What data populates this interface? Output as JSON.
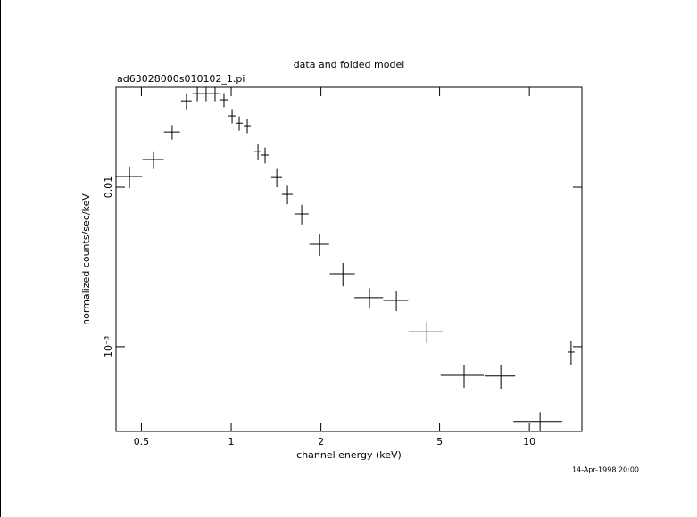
{
  "chart_data": {
    "type": "scatter",
    "title": "data and folded model",
    "subtitle": "ad63028000s010102_1.pi",
    "x_label": "channel energy (keV)",
    "y_label": "normalized counts/sec/keV",
    "footnote": "14-Apr-1998 20:00",
    "xscale": "log",
    "yscale": "log",
    "color": "#000000",
    "xlim": [
      0.411,
      15.0
    ],
    "ylim": [
      0.000294,
      0.0423
    ],
    "xticks": [
      0.5,
      1,
      2,
      5,
      10
    ],
    "yticks": [
      {
        "value": 0.001,
        "label": "10⁻³"
      },
      0.01
    ],
    "x": [
      0.456,
      0.549,
      0.634,
      0.708,
      0.77,
      0.824,
      0.883,
      0.946,
      1.007,
      1.064,
      1.132,
      1.23,
      1.299,
      1.422,
      1.544,
      1.724,
      1.98,
      2.37,
      2.91,
      3.58,
      4.53,
      6.04,
      8.02,
      10.86,
      13.8
    ],
    "xerr": [
      0.047,
      0.045,
      0.039,
      0.029,
      0.027,
      0.028,
      0.03,
      0.033,
      0.028,
      0.029,
      0.031,
      0.034,
      0.036,
      0.059,
      0.064,
      0.095,
      0.15,
      0.229,
      0.321,
      0.345,
      0.593,
      0.998,
      0.939,
      2.02,
      0.38
    ],
    "y": [
      0.01167,
      0.0149,
      0.0222,
      0.0348,
      0.0386,
      0.0386,
      0.0386,
      0.0353,
      0.028,
      0.0252,
      0.0243,
      0.0167,
      0.0159,
      0.0115,
      0.00902,
      0.0068,
      0.00439,
      0.00287,
      0.00203,
      0.00195,
      0.00124,
      0.000662,
      0.000655,
      0.00034,
      0.000925
    ],
    "yerr": [
      0.0018,
      0.0019,
      0.0023,
      0.004,
      0.004,
      0.004,
      0.004,
      0.0036,
      0.0029,
      0.0026,
      0.0025,
      0.0019,
      0.0018,
      0.0015,
      0.0012,
      0.00096,
      0.00068,
      0.00048,
      0.00029,
      0.00028,
      0.00019,
      0.00011,
      0.00011,
      4.8e-05,
      0.000155
    ]
  }
}
